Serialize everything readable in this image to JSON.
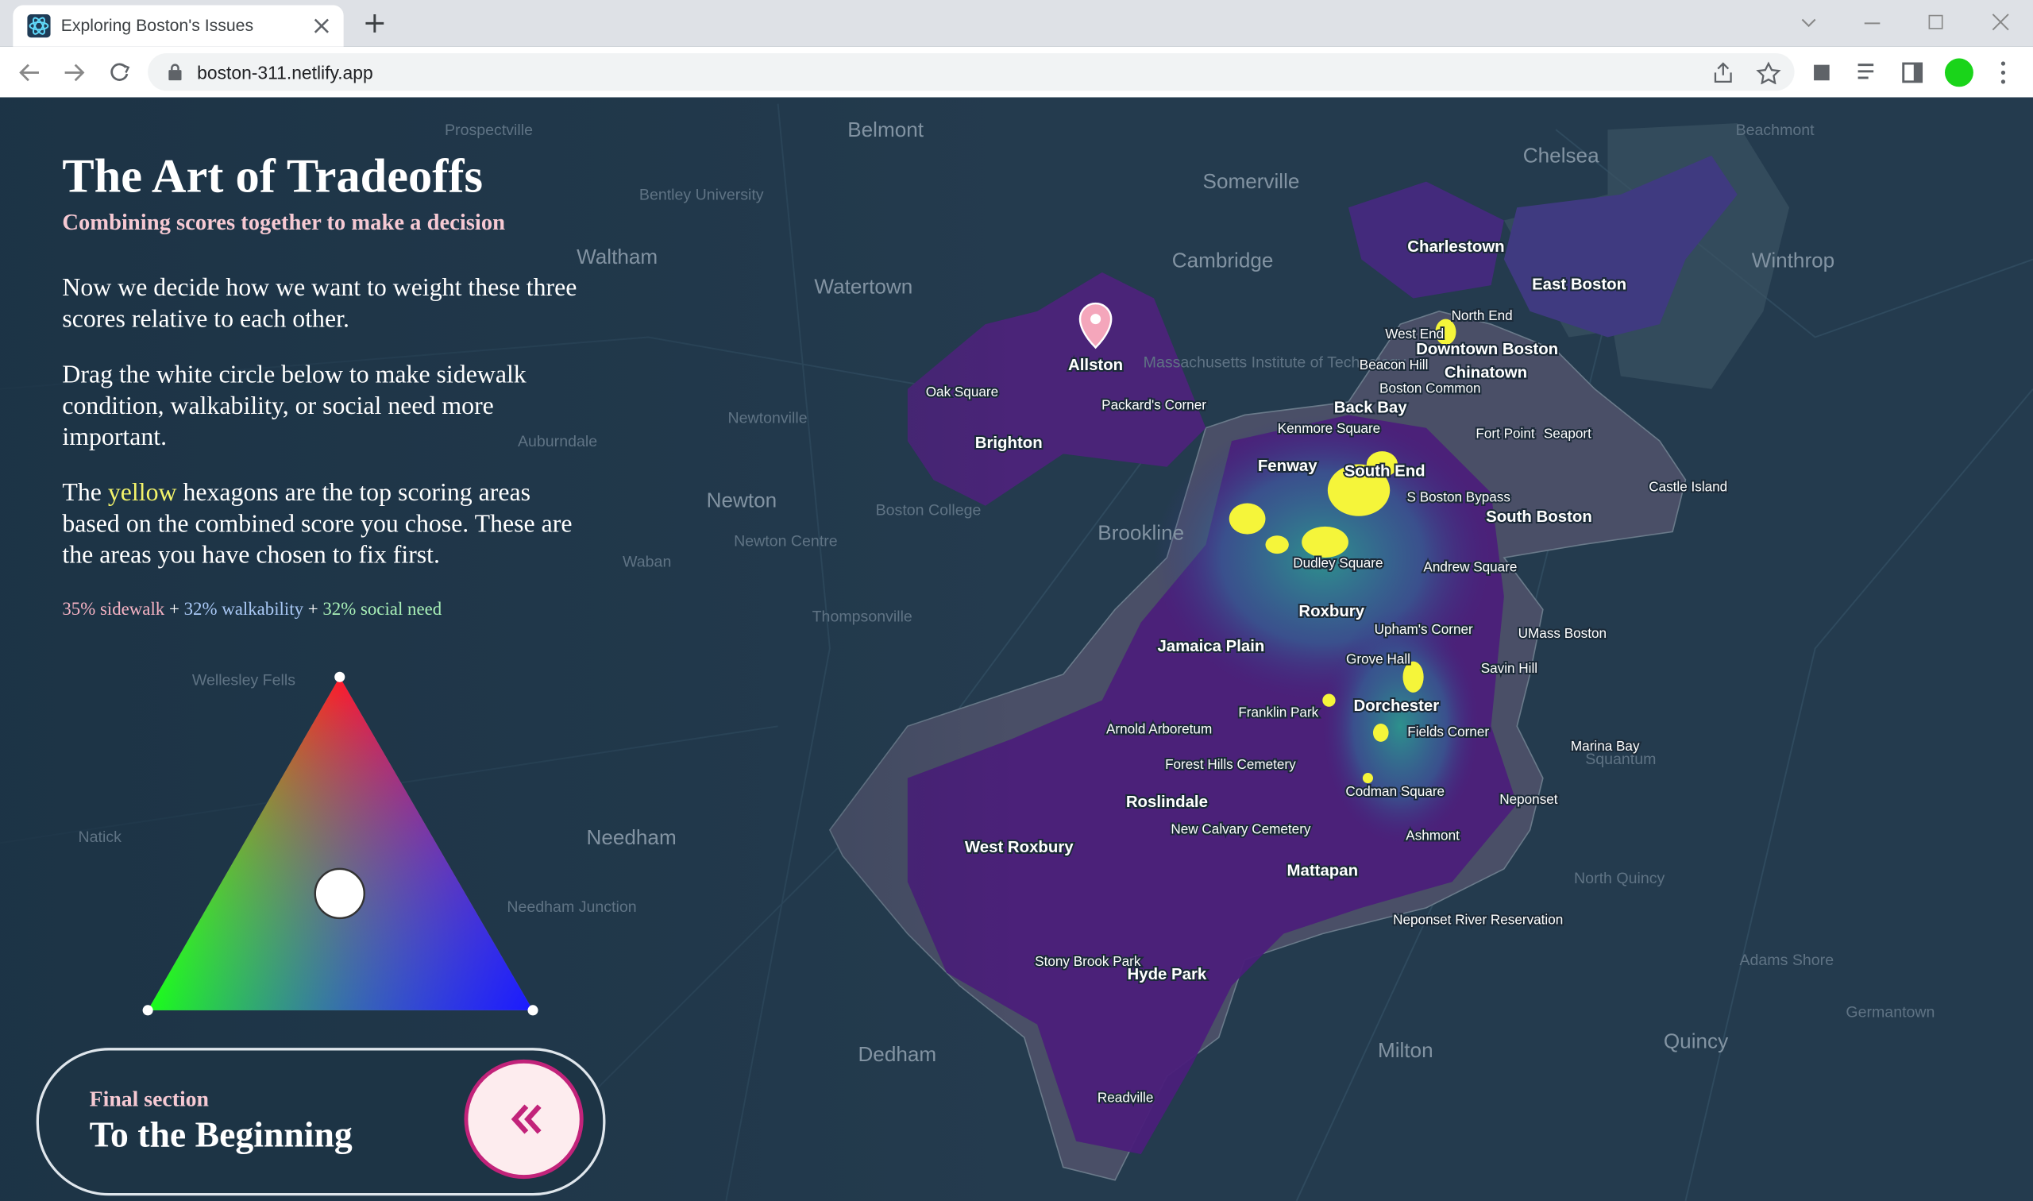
{
  "browser": {
    "tab_title": "Exploring Boston's Issues",
    "url": "boston-311.netlify.app"
  },
  "panel": {
    "title": "The Art of Tradeoffs",
    "subtitle": "Combining scores together to make a decision",
    "paragraph_1": "Now we decide how we want to weight these three scores relative to each other.",
    "paragraph_2": "Drag the white circle below to make sidewalk condition, walkability, or social need more important.",
    "paragraph_3": {
      "before": "The",
      "highlight": "yellow",
      "after": "hexagons are the top scoring areas based on the combined score you chose. These are the areas you have chosen to fix first."
    },
    "weights": {
      "sidewalk": "35% sidewalk",
      "plus_1": "+",
      "walkability": "32% walkability",
      "plus_2": "+",
      "social_need": "32% social need"
    }
  },
  "navigation": {
    "label": "Final section",
    "title": "To the Beginning"
  },
  "map": {
    "cities": [
      "Belmont",
      "Somerville",
      "Chelsea",
      "Cambridge",
      "Waltham",
      "Watertown",
      "Winthrop",
      "Newton",
      "Brookline",
      "Needham",
      "Dedham",
      "Milton",
      "Quincy"
    ],
    "places": [
      "Prospectville",
      "Bentley University",
      "Newtonville",
      "Auburndale",
      "Newton Centre",
      "Waban",
      "Thompsonville",
      "Boston College",
      "Wellesley Fells",
      "Natick",
      "Needham Junction",
      "North Quincy",
      "Adams Shore",
      "Germantown",
      "Squantum",
      "Beachmont",
      "Massachusetts Institute of Technology"
    ],
    "neighborhoods": [
      "Charlestown",
      "East Boston",
      "Allston",
      "Brighton",
      "Oak Square",
      "Packard's Corner",
      "North End",
      "West End",
      "Downtown Boston",
      "Beacon Hill",
      "Chinatown",
      "Boston Common",
      "Back Bay",
      "Kenmore Square",
      "Fort Point",
      "Seaport",
      "Fenway",
      "South End",
      "Castle Island",
      "S Boston Bypass",
      "South Boston",
      "Dudley Square",
      "Andrew Square",
      "Roxbury",
      "Upham's Corner",
      "UMass Boston",
      "Jamaica Plain",
      "Grove Hall",
      "Savin Hill",
      "Dorchester",
      "Franklin Park",
      "Arnold Arboretum",
      "Fields Corner",
      "Marina Bay",
      "Forest Hills Cemetery",
      "Roslindale",
      "Codman Square",
      "Neponset",
      "New Calvary Cemetery",
      "Ashmont",
      "West Roxbury",
      "Mattapan",
      "Neponset River Reservation",
      "Stony Brook Park",
      "Hyde Park",
      "Readville"
    ]
  }
}
